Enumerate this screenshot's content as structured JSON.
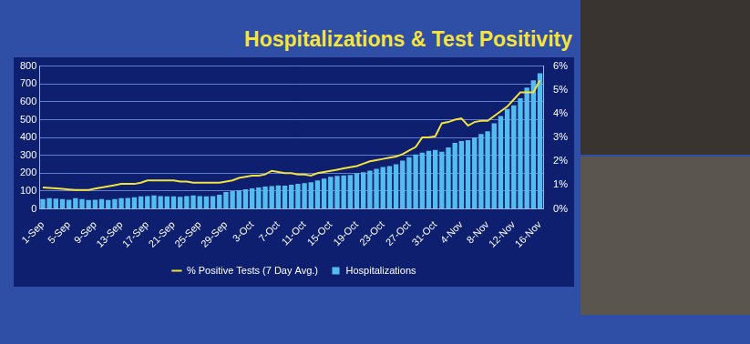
{
  "chart_data": {
    "type": "bar",
    "title": "Hospitalizations & Test Positivity",
    "categories": [
      "1-Sep",
      null,
      null,
      null,
      "5-Sep",
      null,
      null,
      null,
      "9-Sep",
      null,
      null,
      null,
      "13-Sep",
      null,
      null,
      null,
      "17-Sep",
      null,
      null,
      null,
      "21-Sep",
      null,
      null,
      null,
      "25-Sep",
      null,
      null,
      null,
      "29-Sep",
      null,
      null,
      null,
      "3-Oct",
      null,
      null,
      null,
      "7-Oct",
      null,
      null,
      null,
      "11-Oct",
      null,
      null,
      null,
      "15-Oct",
      null,
      null,
      null,
      "19-Oct",
      null,
      null,
      null,
      "23-Oct",
      null,
      null,
      null,
      "27-Oct",
      null,
      null,
      null,
      "31-Oct",
      null,
      null,
      null,
      "4-Nov",
      null,
      null,
      null,
      "8-Nov",
      null,
      null,
      null,
      "12-Nov",
      null,
      null,
      null,
      "16-Nov"
    ],
    "series": [
      {
        "name": "Hospitalizations",
        "type": "bar",
        "color": "#52bdee",
        "values": [
          55,
          60,
          58,
          55,
          52,
          60,
          55,
          50,
          52,
          55,
          50,
          55,
          60,
          62,
          65,
          70,
          72,
          75,
          72,
          70,
          70,
          68,
          72,
          75,
          72,
          70,
          72,
          80,
          95,
          100,
          105,
          110,
          115,
          120,
          125,
          128,
          132,
          130,
          135,
          140,
          145,
          150,
          160,
          170,
          180,
          185,
          188,
          190,
          200,
          205,
          215,
          225,
          235,
          240,
          250,
          270,
          290,
          305,
          315,
          325,
          330,
          320,
          345,
          370,
          380,
          385,
          400,
          420,
          435,
          480,
          520,
          560,
          580,
          620,
          680,
          720,
          760
        ]
      },
      {
        "name": "% Positive Tests (7 Day Avg.)",
        "type": "line",
        "axis": "y2",
        "color": "#f2e23c",
        "line_style": "solid",
        "values": [
          0.9,
          0.88,
          0.86,
          0.84,
          0.82,
          0.8,
          0.8,
          0.8,
          0.85,
          0.9,
          0.95,
          1.0,
          1.05,
          1.05,
          1.05,
          1.1,
          1.2,
          1.2,
          1.2,
          1.2,
          1.2,
          1.15,
          1.15,
          1.1,
          1.1,
          1.1,
          1.1,
          1.1,
          1.15,
          1.2,
          1.3,
          1.35,
          1.4,
          1.4,
          1.45,
          1.6,
          1.55,
          1.5,
          1.5,
          1.45,
          1.45,
          1.4,
          1.5,
          1.55,
          1.6,
          1.65,
          1.7,
          1.75,
          1.8,
          1.9,
          2.0,
          2.05,
          2.1,
          2.15,
          2.2,
          2.3,
          2.45,
          2.6,
          3.0,
          3.0,
          3.05,
          3.6,
          3.65,
          3.75,
          3.8,
          3.5,
          3.65,
          3.7,
          3.7,
          3.9,
          4.1,
          4.3,
          4.6,
          4.9,
          4.9,
          4.9,
          5.4
        ]
      }
    ],
    "ylim": [
      0,
      800
    ],
    "yticks": [
      0,
      100,
      200,
      300,
      400,
      500,
      600,
      700,
      800
    ],
    "y2lim": [
      0,
      6
    ],
    "y2ticks": [
      {
        "value": 0,
        "label": "0%"
      },
      {
        "value": 1,
        "label": "1%"
      },
      {
        "value": 2,
        "label": "2%"
      },
      {
        "value": 3,
        "label": "3%"
      },
      {
        "value": 4,
        "label": "4%"
      },
      {
        "value": 5,
        "label": "5%"
      },
      {
        "value": 6,
        "label": "6%"
      }
    ],
    "grid": true,
    "legend": "bottom"
  }
}
